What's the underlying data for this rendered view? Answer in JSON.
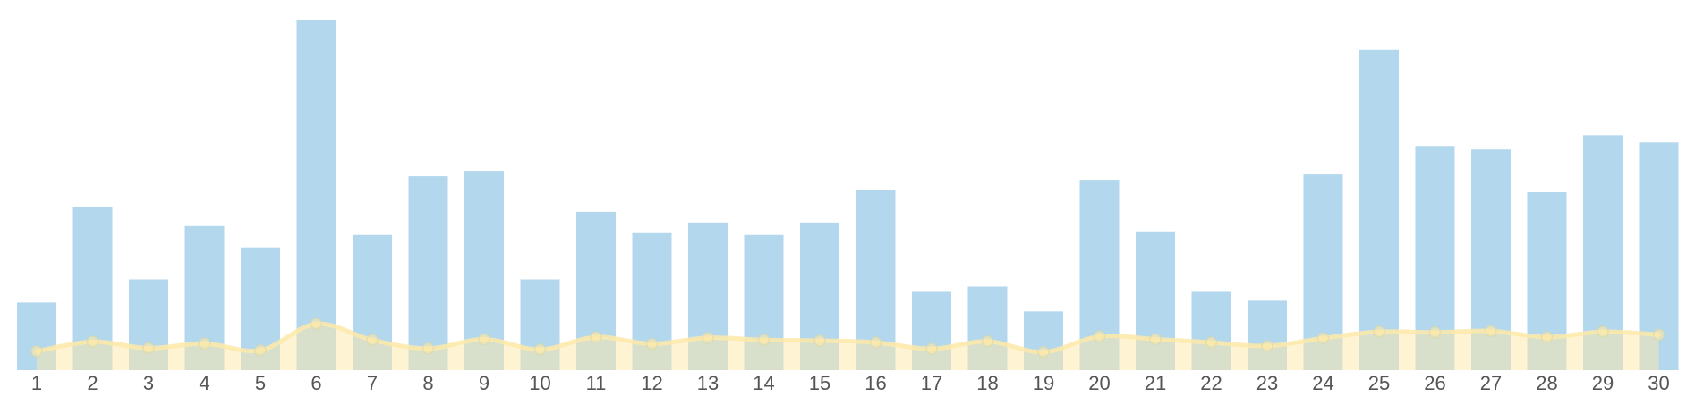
{
  "chart_data": {
    "type": "bar",
    "categories": [
      "1",
      "2",
      "3",
      "4",
      "5",
      "6",
      "7",
      "8",
      "9",
      "10",
      "11",
      "12",
      "13",
      "14",
      "15",
      "16",
      "17",
      "18",
      "19",
      "20",
      "21",
      "22",
      "23",
      "24",
      "25",
      "26",
      "27",
      "28",
      "29",
      "30"
    ],
    "series": [
      {
        "type": "bar",
        "color": "#b3d7ed",
        "values": [
          19,
          46,
          25.5,
          40.5,
          34.5,
          98.5,
          38,
          54.5,
          56,
          25.5,
          44.5,
          38.5,
          41.5,
          38,
          41.5,
          50.5,
          22,
          23.5,
          16.5,
          53.5,
          39,
          22,
          19.5,
          55,
          90,
          63,
          62,
          50,
          66,
          64
        ]
      },
      {
        "type": "area-line",
        "color": "#fde9a9",
        "values": [
          5.3,
          8,
          6.2,
          7.5,
          5.6,
          13,
          8.5,
          6.1,
          8.7,
          5.8,
          9.3,
          7.4,
          9.1,
          8.5,
          8.3,
          7.8,
          6,
          8.1,
          5.1,
          9.5,
          8.7,
          7.8,
          6.8,
          9,
          10.8,
          10.6,
          11,
          9.3,
          10.8,
          10
        ]
      }
    ],
    "ylim": [
      0,
      100
    ],
    "grid": false,
    "legend": "none"
  }
}
